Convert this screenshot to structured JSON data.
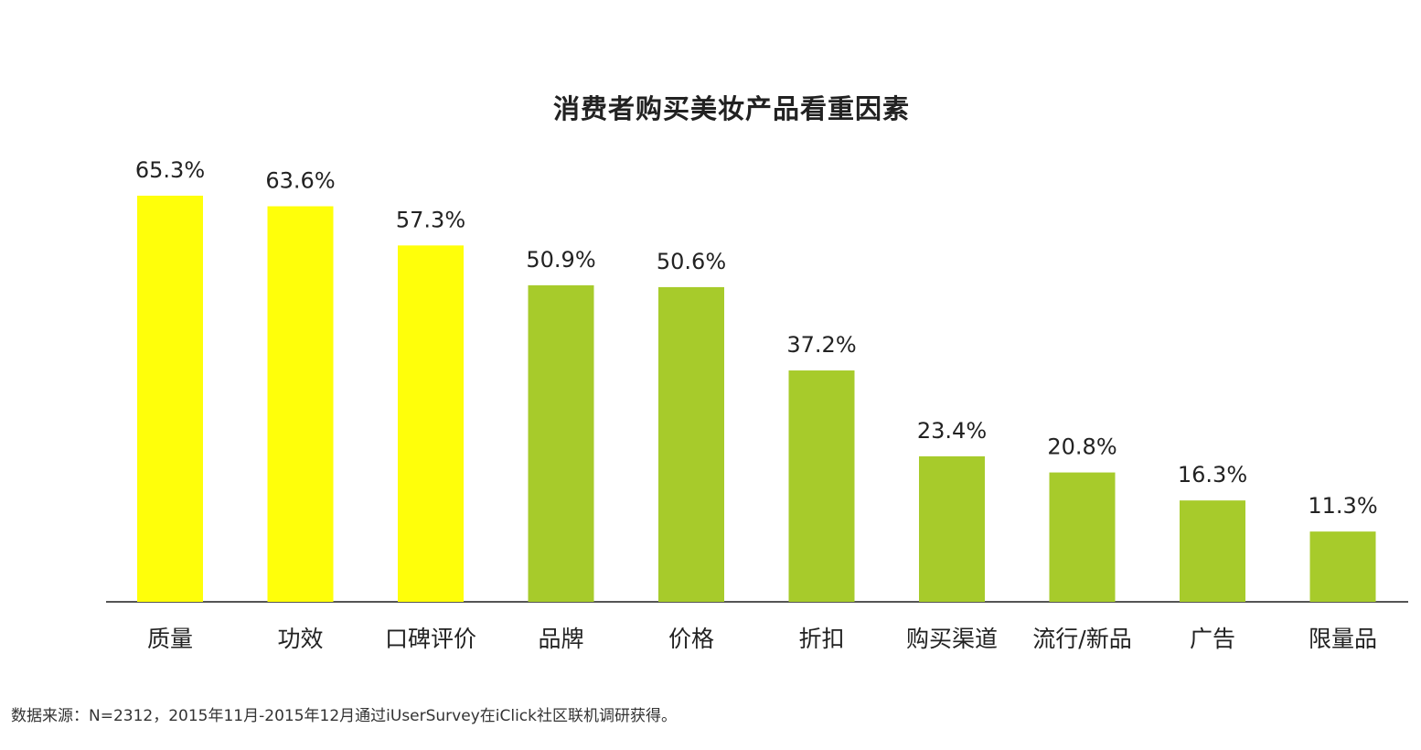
{
  "colors": {
    "highlight": "#FFFF0A",
    "normal": "#A7CB2B",
    "axis": "#555555"
  },
  "chart_data": {
    "type": "bar",
    "title": "消费者购买美妆产品看重因素",
    "categories": [
      "质量",
      "功效",
      "口碑评价",
      "品牌",
      "价格",
      "折扣",
      "购买渠道",
      "流行/新品",
      "广告",
      "限量品"
    ],
    "values": [
      65.3,
      63.6,
      57.3,
      50.9,
      50.6,
      37.2,
      23.4,
      20.8,
      16.3,
      11.3
    ],
    "value_labels": [
      "65.3%",
      "63.6%",
      "57.3%",
      "50.9%",
      "50.6%",
      "37.2%",
      "23.4%",
      "20.8%",
      "16.3%",
      "11.3%"
    ],
    "highlighted": [
      true,
      true,
      true,
      false,
      false,
      false,
      false,
      false,
      false,
      false
    ],
    "unit": "%",
    "xlabel": "",
    "ylabel": "",
    "ylim": [
      0,
      100
    ],
    "grid": false,
    "legend": "none"
  },
  "footer": {
    "source": "数据来源：N=2312，2015年11月-2015年12月通过iUserSurvey在iClick社区联机调研获得。"
  }
}
